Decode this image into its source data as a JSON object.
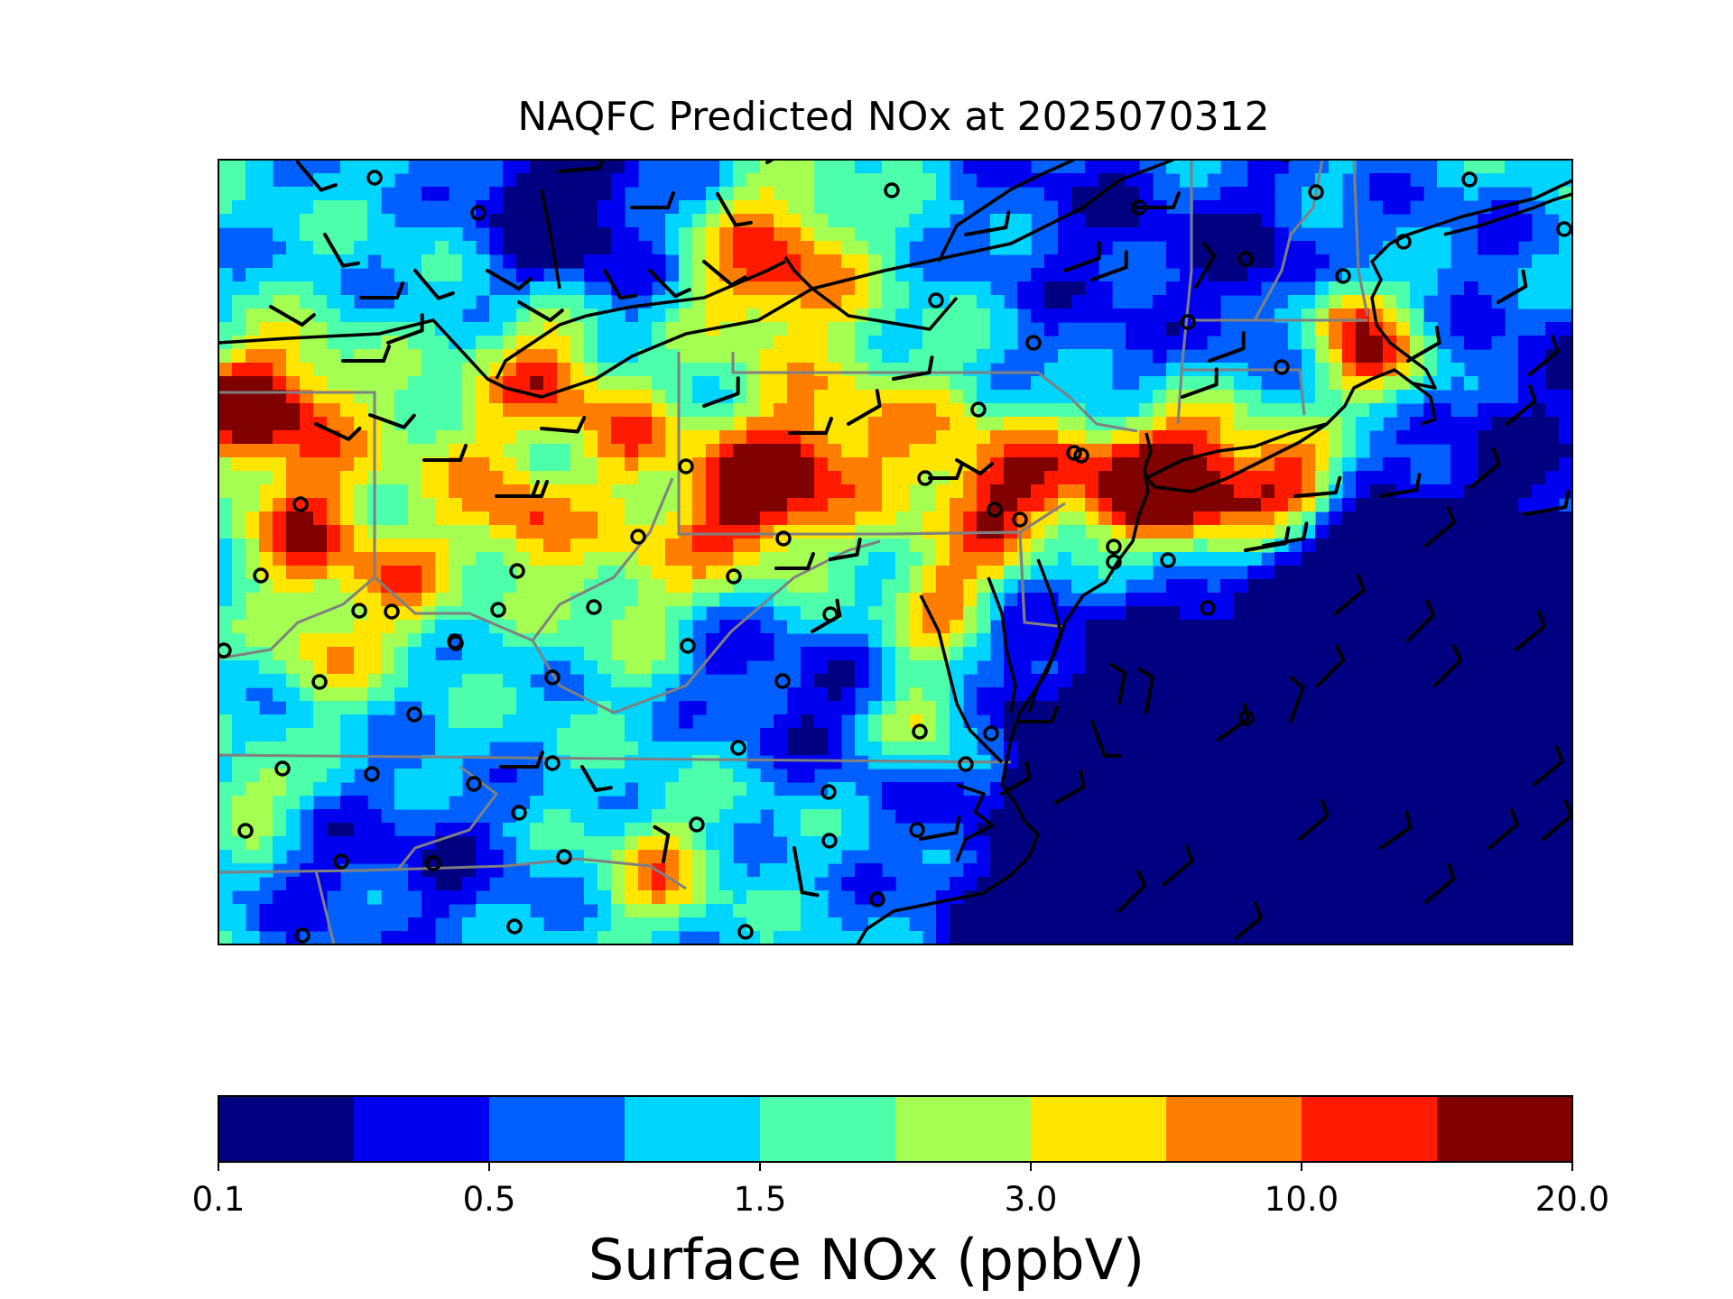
{
  "title": "NAQFC Predicted NOx at 2025070312",
  "colorbar": {
    "label": "Surface NOx (ppbV)",
    "tick_labels": [
      "0.1",
      "0.5",
      "1.5",
      "3.0",
      "10.0",
      "20.0"
    ],
    "colors": [
      "#000080",
      "#0000f1",
      "#0060ff",
      "#00d5ff",
      "#4dffaa",
      "#a4ff52",
      "#ffe500",
      "#ff7d00",
      "#ff1a00",
      "#800000"
    ]
  },
  "map": {
    "field": "Surface NOx",
    "legend_symbols": [
      "observation-site-circle",
      "wind-barb"
    ],
    "line_colors": {
      "coastline": "#000000",
      "state_borders": "#808080"
    }
  }
}
